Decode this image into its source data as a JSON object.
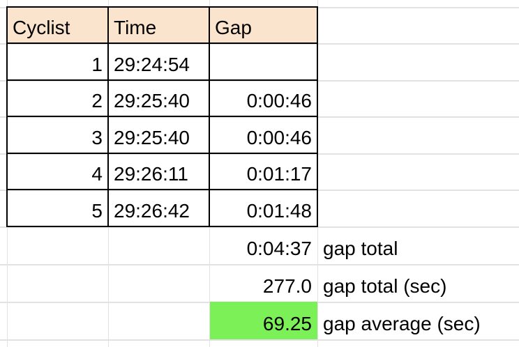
{
  "table": {
    "header": [
      "Cyclist",
      "Time",
      "Gap"
    ],
    "rows": [
      {
        "cyclist": 1,
        "time": "29:24:54"
      },
      {
        "cyclist": 2,
        "time": "29:25:40",
        "gap": "0:00:46"
      },
      {
        "cyclist": 3,
        "time": "29:25:40",
        "gap": "0:00:46"
      },
      {
        "cyclist": 4,
        "time": "29:26:11",
        "gap": "0:01:17"
      },
      {
        "cyclist": 5,
        "time": "29:26:42",
        "gap": "0:01:48"
      }
    ],
    "summary": [
      {
        "value": "0:04:37",
        "label": "gap total"
      },
      {
        "value": "277.0",
        "label": "gap total (sec)"
      },
      {
        "value": "69.25",
        "label": "gap average (sec)"
      }
    ]
  }
}
